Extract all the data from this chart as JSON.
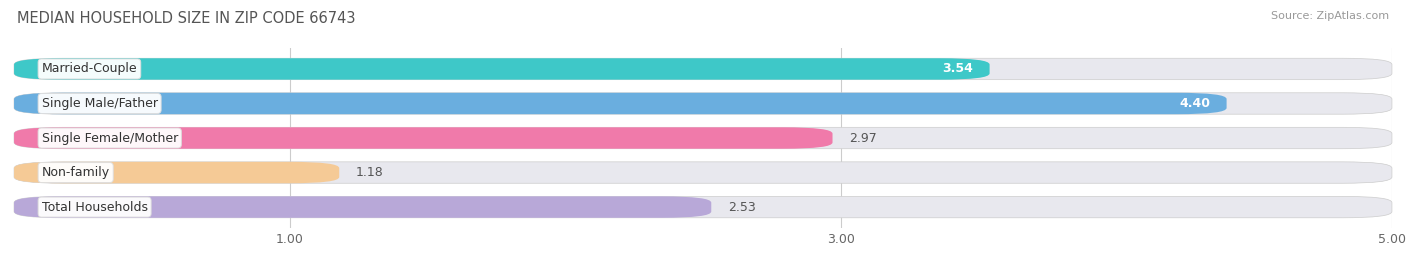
{
  "title": "MEDIAN HOUSEHOLD SIZE IN ZIP CODE 66743",
  "source": "Source: ZipAtlas.com",
  "categories": [
    "Married-Couple",
    "Single Male/Father",
    "Single Female/Mother",
    "Non-family",
    "Total Households"
  ],
  "values": [
    3.54,
    4.4,
    2.97,
    1.18,
    2.53
  ],
  "bar_colors": [
    "#3ec8c8",
    "#6aaedf",
    "#f07aaa",
    "#f5ca96",
    "#b8a8d8"
  ],
  "label_pill_colors": [
    "#3ec8c8",
    "#6aaedf",
    "#f07aaa",
    "#f5ca96",
    "#b8a8d8"
  ],
  "xlim": [
    0,
    5.0
  ],
  "xticks": [
    1.0,
    3.0,
    5.0
  ],
  "title_fontsize": 10.5,
  "source_fontsize": 8,
  "label_fontsize": 9,
  "value_fontsize": 9,
  "background_color": "#f5f5f8",
  "bar_bg_color": "#e8e8ee",
  "bar_height": 0.62,
  "figsize": [
    14.06,
    2.68
  ]
}
